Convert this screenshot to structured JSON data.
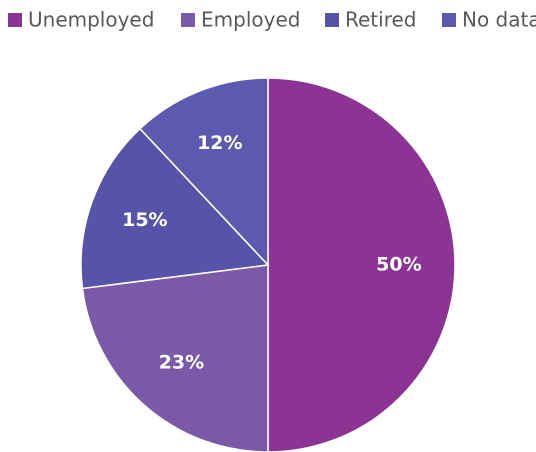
{
  "chart_data": {
    "type": "pie",
    "categories": [
      "Unemployed",
      "Employed",
      "Retired",
      "No data"
    ],
    "values": [
      50,
      23,
      15,
      12
    ],
    "value_labels": [
      "50%",
      "23%",
      "15%",
      "12%"
    ],
    "colors": [
      "#8b3494",
      "#7a5aa8",
      "#5753a9",
      "#5b5aae"
    ],
    "legend": "top"
  }
}
